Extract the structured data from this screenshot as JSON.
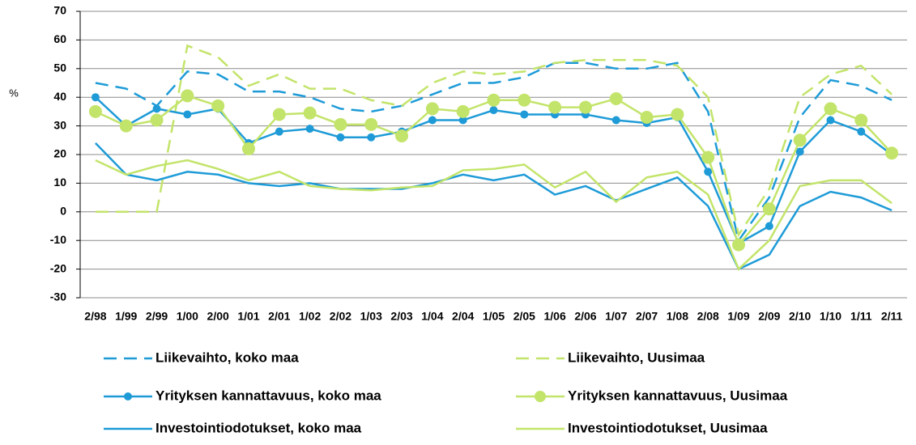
{
  "chart_data": {
    "type": "line",
    "y_label": "%",
    "categories": [
      "2/98",
      "1/99",
      "2/99",
      "1/00",
      "2/00",
      "1/01",
      "2/01",
      "1/02",
      "2/02",
      "1/03",
      "2/03",
      "1/04",
      "2/04",
      "1/05",
      "2/05",
      "1/06",
      "2/06",
      "1/07",
      "2/07",
      "1/08",
      "2/08",
      "1/09",
      "2/09",
      "2/10",
      "1/10",
      "1/11",
      "2/11"
    ],
    "ylim": [
      -30,
      70
    ],
    "yticks": [
      -30,
      -20,
      -10,
      0,
      10,
      20,
      30,
      40,
      50,
      60,
      70
    ],
    "grid": true,
    "legend": "bottom",
    "series": [
      {
        "name": "Liikevaihto, koko maa",
        "color": "#1e9bd7",
        "line_style": "dashed",
        "marker": false,
        "values": [
          45,
          43,
          37,
          49,
          48,
          42,
          42,
          40,
          36,
          35,
          37,
          41,
          45,
          45,
          47,
          52,
          52,
          50,
          50,
          52,
          35,
          -10,
          5,
          33,
          46,
          44,
          39
        ]
      },
      {
        "name": "Liikevaihto, Uusimaa",
        "color": "#c3e46a",
        "line_style": "dashed",
        "marker": false,
        "values": [
          0,
          0,
          0,
          58,
          54,
          44,
          48,
          43,
          43,
          39,
          37,
          45,
          49,
          48,
          49,
          52,
          53,
          53,
          53,
          51,
          40,
          -8,
          8,
          40,
          48,
          51,
          41
        ]
      },
      {
        "name": "Yrityksen kannattavuus, koko maa",
        "color": "#1e9bd7",
        "line_style": "solid",
        "marker": true,
        "values": [
          40,
          30,
          36,
          34,
          36,
          24,
          28,
          29,
          26,
          26,
          28,
          32,
          32,
          35.5,
          34,
          34,
          34,
          32,
          31,
          33,
          14,
          -11,
          -5,
          21,
          32,
          28,
          20
        ]
      },
      {
        "name": "Yrityksen kannattavuus, Uusimaa",
        "color": "#c3e46a",
        "line_style": "solid",
        "marker": true,
        "values": [
          35,
          30,
          32,
          40.5,
          37,
          22,
          34,
          34.5,
          30.5,
          30.5,
          26.5,
          36,
          35,
          39,
          39,
          36.5,
          36.5,
          39.5,
          33,
          34,
          19,
          -11.5,
          1,
          25,
          36,
          32,
          20.5
        ]
      },
      {
        "name": "Investointiodotukset, koko maa",
        "color": "#1e9bd7",
        "line_style": "solid",
        "marker": false,
        "values": [
          24,
          13,
          11,
          14,
          13,
          10,
          9,
          10,
          8,
          8,
          8,
          10,
          13,
          11,
          13,
          6,
          9,
          4,
          8,
          12,
          2,
          -20,
          -15,
          2,
          7,
          5,
          0.5
        ]
      },
      {
        "name": "Investointiodotukset, Uusimaa",
        "color": "#c3e46a",
        "line_style": "solid",
        "marker": false,
        "values": [
          18,
          13,
          16,
          18,
          15,
          11,
          14,
          9,
          8,
          7.5,
          8.5,
          9,
          14.5,
          15,
          16.5,
          8.5,
          14,
          3.5,
          12,
          14,
          6,
          -20,
          -10,
          9,
          11,
          11,
          3
        ]
      }
    ]
  }
}
